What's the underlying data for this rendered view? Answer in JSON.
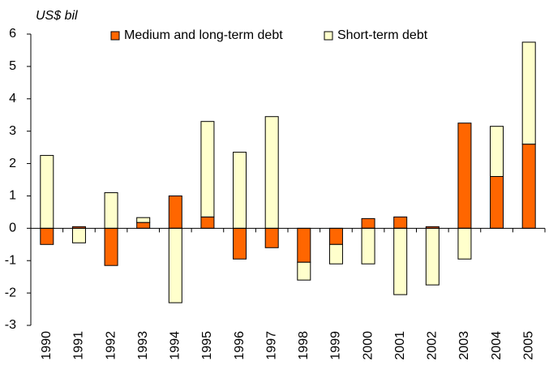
{
  "chart_data": {
    "type": "bar",
    "stacked": true,
    "y_axis_label": "US$ bil",
    "categories": [
      "1990",
      "1991",
      "1992",
      "1993",
      "1994",
      "1995",
      "1996",
      "1997",
      "1998",
      "1999",
      "2000",
      "2001",
      "2002",
      "2003",
      "2004",
      "2005"
    ],
    "series": [
      {
        "name": "Medium and long-term debt",
        "color": "#ff6600",
        "values": [
          -0.5,
          0.05,
          -1.15,
          0.18,
          1.0,
          0.35,
          -0.95,
          -0.6,
          -1.05,
          -0.5,
          0.3,
          0.35,
          0.05,
          3.25,
          1.6,
          2.6
        ]
      },
      {
        "name": "Short-term debt",
        "color": "#ffffcc",
        "values": [
          2.25,
          -0.45,
          1.1,
          0.15,
          -2.3,
          2.95,
          2.35,
          3.45,
          -0.55,
          -0.6,
          -1.1,
          -2.05,
          -1.75,
          -0.95,
          1.55,
          3.15
        ]
      }
    ],
    "ylim": [
      -3,
      6
    ],
    "yticks": [
      -3,
      -2,
      -1,
      0,
      1,
      2,
      3,
      4,
      5,
      6
    ],
    "grid": false,
    "legend": "top"
  }
}
